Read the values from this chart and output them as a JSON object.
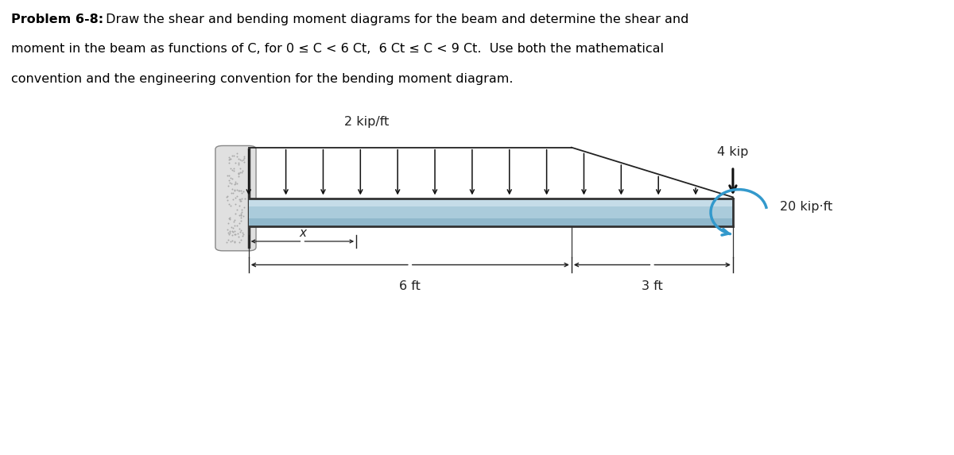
{
  "title_bold": "Problem 6-8:",
  "title_normal": " Draw the shear and bending moment diagrams for the beam and determine the shear and\nmoment in the beam as functions of Ϲ, for 0 ≤ Ϲ < 6 Ϲt, 6 Ϲt ≤ Ϲ < 9 Ϲt.  Use both the mathematical\nconvention and the engineering convention for the bending moment diagram.",
  "dist_load_label": "2 kip/ft",
  "point_load_label": "4 kip",
  "moment_label": "20 kip·ft",
  "dim_6ft_label": "6 ft",
  "dim_3ft_label": "3 ft",
  "x_label": "x",
  "background_color": "#ffffff",
  "moment_arrow_color": "#3399cc",
  "beam_light_color": "#c8dde8",
  "beam_mid_color": "#a8c8d8",
  "beam_dark_color": "#88aabb",
  "wall_fill_color": "#e8e8e8",
  "wall_dot_color": "#aaaaaa",
  "beam_outline_color": "#444444"
}
